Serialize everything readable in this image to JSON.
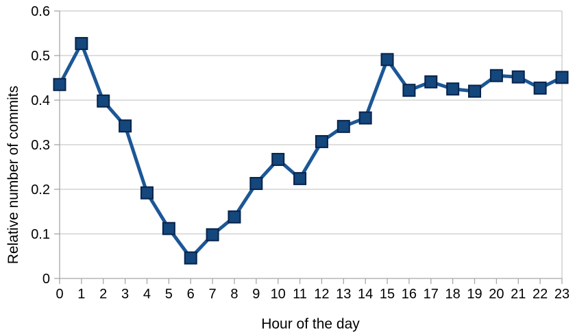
{
  "chart_data": {
    "type": "line",
    "title": "",
    "xlabel": "Hour of the day",
    "ylabel": "Relative number of commits",
    "x": [
      0,
      1,
      2,
      3,
      4,
      5,
      6,
      7,
      8,
      9,
      10,
      11,
      12,
      13,
      14,
      15,
      16,
      17,
      18,
      19,
      20,
      21,
      22,
      23
    ],
    "values": [
      0.435,
      0.527,
      0.398,
      0.342,
      0.192,
      0.112,
      0.046,
      0.098,
      0.138,
      0.213,
      0.267,
      0.224,
      0.307,
      0.341,
      0.36,
      0.491,
      0.422,
      0.441,
      0.425,
      0.42,
      0.455,
      0.452,
      0.427,
      0.451
    ],
    "ylim": [
      0,
      0.6
    ],
    "yticks": [
      0,
      0.1,
      0.2,
      0.3,
      0.4,
      0.5,
      0.6
    ],
    "grid": "horizontal",
    "legend": "none",
    "marker": "square"
  },
  "colors": {
    "line": "#1C5796",
    "marker_fill": "#14477C",
    "marker_stroke": "#07234B",
    "gridline": "#C9C9C9",
    "axis": "#A6A6A6",
    "text": "#000000",
    "background": "#FFFFFF"
  }
}
